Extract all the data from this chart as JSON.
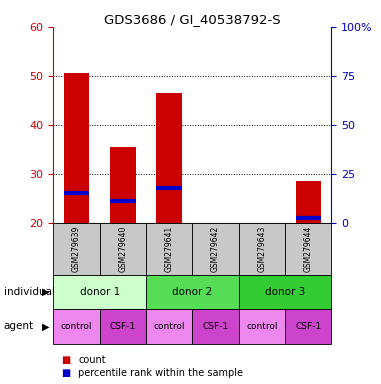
{
  "title": "GDS3686 / GI_40538792-S",
  "samples": [
    "GSM279639",
    "GSM279640",
    "GSM279641",
    "GSM279642",
    "GSM279643",
    "GSM279644"
  ],
  "bar_bottoms": [
    20,
    20,
    20,
    20,
    20,
    20
  ],
  "bar_tops": [
    50.5,
    35.5,
    46.5,
    20,
    20,
    28.5
  ],
  "blue_markers": [
    26.0,
    24.5,
    27.0,
    null,
    null,
    21.0
  ],
  "ylim": [
    20,
    60
  ],
  "yticks_left": [
    20,
    30,
    40,
    50,
    60
  ],
  "yticks_right": [
    0,
    25,
    50,
    75,
    100
  ],
  "ytick_right_labels": [
    "0",
    "25",
    "50",
    "75",
    "100%"
  ],
  "bar_color": "#cc0000",
  "blue_color": "#0000cc",
  "individual_spans": [
    [
      0,
      1,
      "donor 1",
      "#ccffcc"
    ],
    [
      2,
      3,
      "donor 2",
      "#55dd55"
    ],
    [
      4,
      5,
      "donor 3",
      "#33cc33"
    ]
  ],
  "agent_labels": [
    "control",
    "CSF-1",
    "control",
    "CSF-1",
    "control",
    "CSF-1"
  ],
  "agent_colors": [
    "#ee88ee",
    "#cc44cc",
    "#ee88ee",
    "#cc44cc",
    "#ee88ee",
    "#cc44cc"
  ],
  "sample_bg_color": "#c8c8c8",
  "left_tick_color": "#cc0000",
  "right_tick_color": "#0000bb",
  "grid_linestyle": "dotted",
  "grid_yticks": [
    30,
    40,
    50
  ],
  "bar_width": 0.55
}
